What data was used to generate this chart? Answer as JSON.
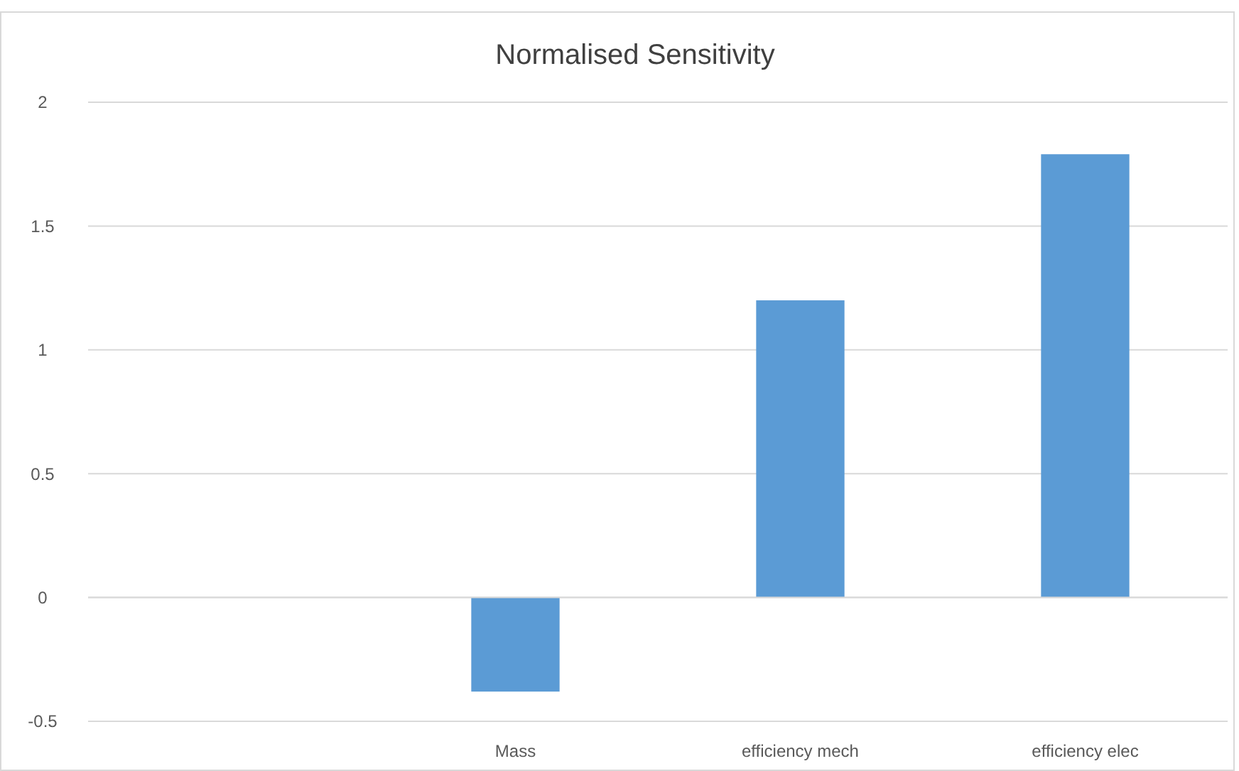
{
  "chart_data": {
    "type": "bar",
    "title": "Normalised Sensitivity",
    "categories": [
      null,
      "Mass",
      "efficiency mech",
      "efficiency elec"
    ],
    "values": [
      null,
      -0.38,
      1.2,
      1.79
    ],
    "color": "#5b9bd5",
    "ylim": [
      -0.5,
      2
    ],
    "yticks": [
      -0.5,
      0,
      0.5,
      1,
      1.5,
      2
    ],
    "grid": "y"
  }
}
